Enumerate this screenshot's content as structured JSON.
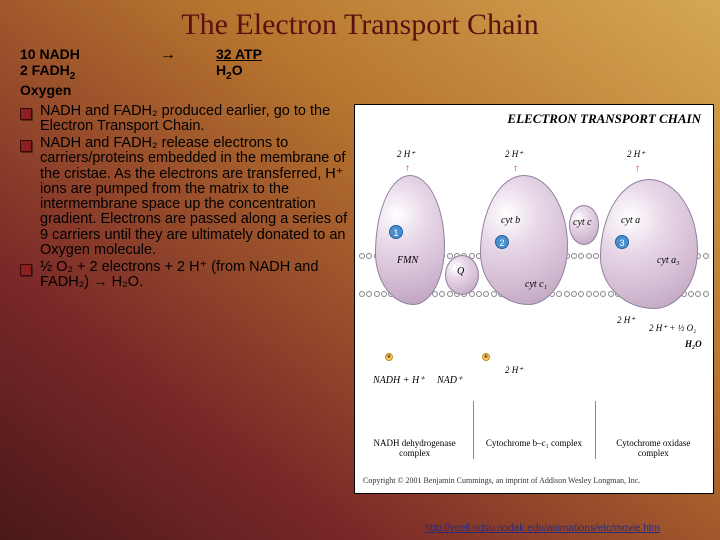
{
  "title": "The Electron Transport Chain",
  "reactants": {
    "line1": "10 NADH",
    "line2": "2 FADH",
    "line2_sub": "2",
    "line3": "Oxygen"
  },
  "arrow": "→",
  "products": {
    "line1": "32 ATP",
    "line2": "H",
    "line2_sub": "2",
    "line2_suffix": "O"
  },
  "bullets": [
    "NADH and FADH₂ produced earlier, go to the Electron Transport Chain.",
    "NADH and FADH₂ release electrons to carriers/proteins embedded in the membrane of the cristae. As the electrons are transferred, H⁺ ions are pumped from the matrix to the intermembrane space up the concentration gradient.  Electrons are passed along a series of 9 carriers until they are ultimately donated to an Oxygen molecule.",
    "½ O₂ + 2 electrons + 2 H⁺ (from NADH and FADH₂) → H₂O."
  ],
  "diagram": {
    "title": "ELECTRON TRANSPORT CHAIN",
    "h_labels": [
      "2 H⁺",
      "2 H⁺",
      "2 H⁺",
      "2 H⁺",
      "2 H⁺"
    ],
    "proteins": {
      "fmn": "FMN",
      "q": "Q",
      "cytb": "cyt b",
      "cytc1": "cyt c₁",
      "cytc": "cyt c",
      "cyta": "cyt a",
      "cyta3": "cyt a₃"
    },
    "bottom_left": "NADH + H⁺",
    "bottom_nad": "NAD⁺",
    "bottom_right_reac": "2 H⁺ + ½ O₂",
    "bottom_right_prod": "H₂O",
    "complexes": [
      "NADH dehydrogenase complex",
      "Cytochrome b–c₁ complex",
      "Cytochrome oxidase complex"
    ],
    "copyright": "Copyright © 2001 Benjamin Cummings, an imprint of Addison Wesley Longman, Inc."
  },
  "link": "http://vcell.ndsu.nodak.edu/animations/etc/movie.htm",
  "colors": {
    "title_color": "#5a1010",
    "membrane_line": "#333333",
    "blob_fill": "#d0b8d0",
    "link_color": "#2a2a7a"
  }
}
